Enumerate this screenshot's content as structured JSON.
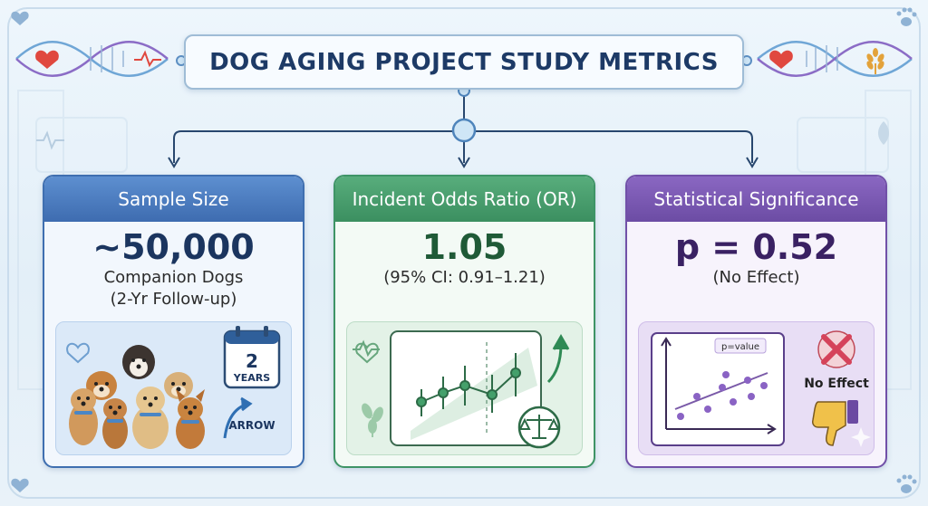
{
  "title": "DOG AGING PROJECT STUDY METRICS",
  "colors": {
    "sample": "#3f6fb0",
    "odds": "#3e9466",
    "significance": "#7150a8",
    "title_text": "#1d3a66"
  },
  "cards": [
    {
      "header": "Sample Size",
      "value": "~50,000",
      "subtitle_line1": "Companion Dogs",
      "subtitle_line2": "(2-Yr Follow-up)",
      "calendar_number": "2",
      "calendar_label": "YEARS",
      "arrow_label": "ARROW",
      "icons": [
        "heart-pulse-icon",
        "dog-group-icon",
        "calendar-icon",
        "curved-arrow-icon"
      ]
    },
    {
      "header": "Incident Odds Ratio (OR)",
      "value": "1.05",
      "subtitle_line1": "(95% CI: 0.91–1.21)",
      "icons": [
        "heart-pulse-icon",
        "error-bar-chart-icon",
        "up-arrow-icon",
        "balance-scale-icon",
        "leaf-icon"
      ]
    },
    {
      "header": "Statistical Significance",
      "value": "p = 0.52",
      "subtitle_line1": "(No Effect)",
      "chart_tag": "p=value",
      "verdict": "No Effect",
      "icons": [
        "scatter-plot-icon",
        "x-mark-icon",
        "thumbs-down-icon",
        "sparkle-icon"
      ]
    }
  ],
  "decorations": [
    "dna-helix-icon",
    "heart-icon",
    "pulse-icon",
    "wheat-icon",
    "paw-icon"
  ]
}
